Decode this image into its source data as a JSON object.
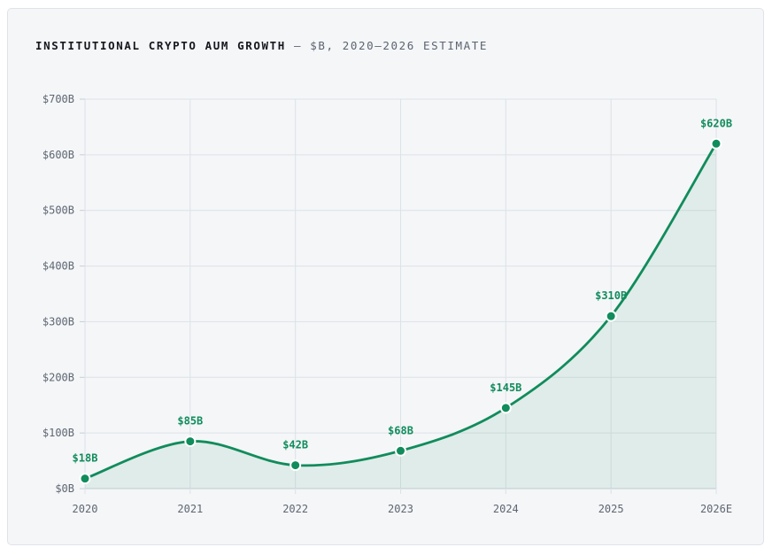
{
  "chart_data": {
    "type": "line",
    "title": "INSTITUTIONAL CRYPTO AUM GROWTH",
    "subtitle": "— $B, 2020–2026 ESTIMATE",
    "categories": [
      "2020",
      "2021",
      "2022",
      "2023",
      "2024",
      "2025",
      "2026E"
    ],
    "values": [
      18,
      85,
      42,
      68,
      145,
      310,
      620
    ],
    "data_labels": [
      "$18B",
      "$85B",
      "$42B",
      "$68B",
      "$145B",
      "$310B",
      "$620B"
    ],
    "y_ticks": [
      0,
      100,
      200,
      300,
      400,
      500,
      600,
      700
    ],
    "y_tick_labels": [
      "$0B",
      "$100B",
      "$200B",
      "$300B",
      "$400B",
      "$500B",
      "$600B",
      "$700B"
    ],
    "ylim": [
      0,
      700
    ],
    "xlabel": "",
    "ylabel": "",
    "grid": true,
    "legend": "none",
    "colors": {
      "line": "#118c5c",
      "fill": "#118c5c",
      "grid": "#dde2e7"
    }
  }
}
